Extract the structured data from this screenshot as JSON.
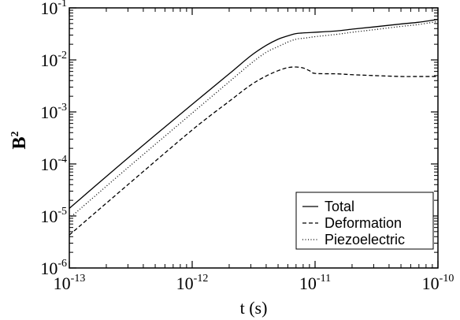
{
  "chart_data": {
    "type": "line",
    "xlabel": "t (s)",
    "ylabel": "B",
    "ylabel_exponent": "2",
    "x_scale": "log",
    "y_scale": "log",
    "xlim": [
      1e-13,
      1e-10
    ],
    "ylim": [
      1e-06,
      0.1
    ],
    "grid": false,
    "legend_position": "bottom-right",
    "x_ticks": [
      {
        "value": 1e-13,
        "base": "10",
        "exp": "-13"
      },
      {
        "value": 1e-12,
        "base": "10",
        "exp": "-12"
      },
      {
        "value": 1e-11,
        "base": "10",
        "exp": "-11"
      },
      {
        "value": 1e-10,
        "base": "10",
        "exp": "-10"
      }
    ],
    "y_ticks": [
      {
        "value": 1e-06,
        "base": "10",
        "exp": "-6"
      },
      {
        "value": 1e-05,
        "base": "10",
        "exp": "-5"
      },
      {
        "value": 0.0001,
        "base": "10",
        "exp": "-4"
      },
      {
        "value": 0.001,
        "base": "10",
        "exp": "-3"
      },
      {
        "value": 0.01,
        "base": "10",
        "exp": "-2"
      },
      {
        "value": 0.1,
        "base": "10",
        "exp": "-1"
      }
    ],
    "series": [
      {
        "name": "Total",
        "dash": "solid",
        "x": [
          1e-13,
          3e-13,
          1e-12,
          2e-12,
          3e-12,
          4e-12,
          5e-12,
          6e-12,
          7e-12,
          8e-12,
          9e-12,
          1e-11,
          1.5e-11,
          2e-11,
          3e-11,
          5e-11,
          7e-11,
          1e-10
        ],
        "y": [
          1.4e-05,
          0.00013,
          0.0014,
          0.0054,
          0.012,
          0.019,
          0.025,
          0.029,
          0.032,
          0.033,
          0.0335,
          0.034,
          0.036,
          0.039,
          0.043,
          0.049,
          0.053,
          0.06
        ]
      },
      {
        "name": "Deformation",
        "dash": "dashed",
        "x": [
          1e-13,
          3e-13,
          1e-12,
          2e-12,
          3e-12,
          4e-12,
          5e-12,
          6e-12,
          7e-12,
          8e-12,
          9e-12,
          1e-11,
          1.5e-11,
          2e-11,
          3e-11,
          5e-11,
          7e-11,
          1e-10
        ],
        "y": [
          4.3e-06,
          4e-05,
          0.00045,
          0.0016,
          0.0033,
          0.0049,
          0.0062,
          0.0071,
          0.0073,
          0.007,
          0.0062,
          0.0055,
          0.0054,
          0.0052,
          0.005,
          0.0048,
          0.0048,
          0.0048
        ]
      },
      {
        "name": "Piezoelectric",
        "dash": "dotted",
        "x": [
          1e-13,
          3e-13,
          1e-12,
          2e-12,
          3e-12,
          4e-12,
          5e-12,
          6e-12,
          7e-12,
          8e-12,
          9e-12,
          1e-11,
          1.5e-11,
          2e-11,
          3e-11,
          5e-11,
          7e-11,
          1e-10
        ],
        "y": [
          9e-06,
          8.5e-05,
          0.00095,
          0.0038,
          0.0085,
          0.014,
          0.018,
          0.022,
          0.025,
          0.026,
          0.027,
          0.028,
          0.031,
          0.034,
          0.038,
          0.044,
          0.048,
          0.055
        ]
      }
    ]
  }
}
